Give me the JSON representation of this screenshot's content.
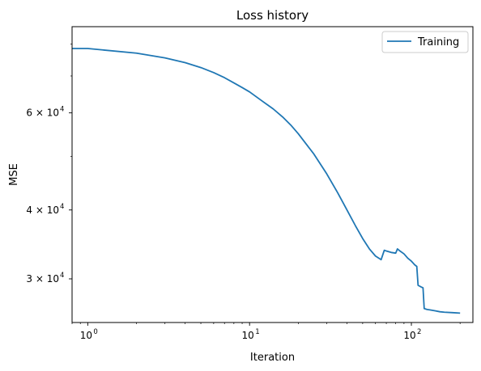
{
  "chart_data": {
    "type": "line",
    "title": "Loss history",
    "xlabel": "Iteration",
    "ylabel": "MSE",
    "xscale": "log",
    "yscale": "log",
    "xlim": [
      0.8,
      240
    ],
    "ylim": [
      25000,
      86000
    ],
    "x_major_ticks": [
      1,
      10,
      100
    ],
    "x_tick_labels": [
      "10",
      "10",
      "10"
    ],
    "x_tick_exponents": [
      "0",
      "1",
      "2"
    ],
    "y_major_ticks": [
      30000,
      40000,
      60000
    ],
    "y_tick_labels": [
      "3 × 10",
      "4 × 10",
      "6 × 10"
    ],
    "y_tick_exponents": [
      "4",
      "4",
      "4"
    ],
    "grid": false,
    "legend_position": "upper right",
    "series": [
      {
        "name": "Training",
        "color": "#1f77b4",
        "x": [
          0.8,
          1,
          2,
          3,
          4,
          5,
          6,
          7,
          8,
          9,
          10,
          12,
          14,
          16,
          18,
          20,
          25,
          30,
          35,
          40,
          45,
          50,
          55,
          60,
          65,
          68,
          70,
          75,
          80,
          82,
          85,
          90,
          95,
          100,
          105,
          108,
          110,
          115,
          118,
          120,
          125,
          130,
          140,
          150,
          160,
          180,
          200
        ],
        "y": [
          78500,
          78500,
          77000,
          75500,
          74000,
          72500,
          71000,
          69500,
          68000,
          66700,
          65500,
          63000,
          61000,
          59000,
          57000,
          55000,
          50500,
          46500,
          43000,
          40000,
          37500,
          35500,
          34000,
          33000,
          32500,
          33800,
          33700,
          33500,
          33400,
          34000,
          33700,
          33300,
          32700,
          32300,
          31800,
          31600,
          29200,
          29000,
          28900,
          26500,
          26400,
          26350,
          26250,
          26150,
          26100,
          26050,
          26000
        ]
      }
    ]
  }
}
